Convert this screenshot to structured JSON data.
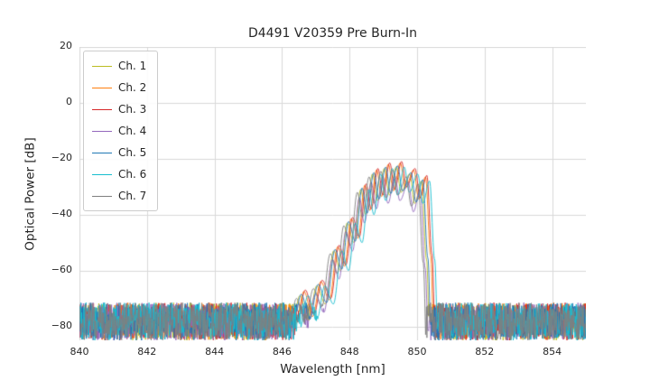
{
  "chart_data": {
    "type": "line",
    "title": "D4491 V20359 Pre Burn-In",
    "xlabel": "Wavelength [nm]",
    "ylabel": "Optical Power [dB]",
    "xlim": [
      840,
      855
    ],
    "ylim": [
      -85,
      20
    ],
    "grid": true,
    "legend_position": "upper left",
    "colors": {
      "background": "#ffffff",
      "grid": "#d9d9d9",
      "text": "#262626"
    },
    "xticks": [
      {
        "value": 840,
        "label": "840"
      },
      {
        "value": 842,
        "label": "842"
      },
      {
        "value": 844,
        "label": "844"
      },
      {
        "value": 846,
        "label": "846"
      },
      {
        "value": 848,
        "label": "848"
      },
      {
        "value": 850,
        "label": "850"
      },
      {
        "value": 852,
        "label": "852"
      },
      {
        "value": 854,
        "label": "854"
      }
    ],
    "yticks": [
      {
        "value": 20,
        "label": "20"
      },
      {
        "value": 0,
        "label": "0"
      },
      {
        "value": -20,
        "label": "−20"
      },
      {
        "value": -40,
        "label": "−40"
      },
      {
        "value": -60,
        "label": "−60"
      },
      {
        "value": -80,
        "label": "−80"
      }
    ],
    "series": [
      {
        "name": "Ch. 1",
        "color": "#bcbd22",
        "dx": -0.02,
        "dy": -1
      },
      {
        "name": "Ch. 2",
        "color": "#ff7f0e",
        "dx": 0.1,
        "dy": 0.5
      },
      {
        "name": "Ch. 3",
        "color": "#d62728",
        "dx": 0.14,
        "dy": 1
      },
      {
        "name": "Ch. 4",
        "color": "#9467bd",
        "dx": -0.06,
        "dy": -4,
        "dropout_x": 846.33
      },
      {
        "name": "Ch. 5",
        "color": "#1f77b4",
        "dx": 0.02,
        "dy": -0.5
      },
      {
        "name": "Ch. 6",
        "color": "#17becf",
        "dx": 0.22,
        "dy": -1
      },
      {
        "name": "Ch. 7",
        "color": "#7f7f7f",
        "dx": -0.12,
        "dy": -2
      }
    ],
    "envelope_points": [
      [
        840.0,
        -95
      ],
      [
        846.15,
        -95
      ],
      [
        846.3,
        -80
      ],
      [
        846.55,
        -68
      ],
      [
        846.8,
        -77
      ],
      [
        847.05,
        -64.5
      ],
      [
        847.3,
        -71
      ],
      [
        847.55,
        -52
      ],
      [
        847.75,
        -59
      ],
      [
        847.95,
        -42
      ],
      [
        848.15,
        -49
      ],
      [
        848.35,
        -30
      ],
      [
        848.5,
        -39
      ],
      [
        848.7,
        -24.5
      ],
      [
        848.85,
        -34
      ],
      [
        849.05,
        -22.5
      ],
      [
        849.2,
        -32
      ],
      [
        849.4,
        -22
      ],
      [
        849.55,
        -31
      ],
      [
        849.8,
        -24.5
      ],
      [
        849.95,
        -35
      ],
      [
        850.15,
        -27
      ],
      [
        850.3,
        -55
      ],
      [
        850.42,
        -95
      ],
      [
        855.0,
        -95
      ]
    ],
    "noise_floor": {
      "min": -85,
      "max": -71.5
    },
    "noise_seed": 987654321
  }
}
